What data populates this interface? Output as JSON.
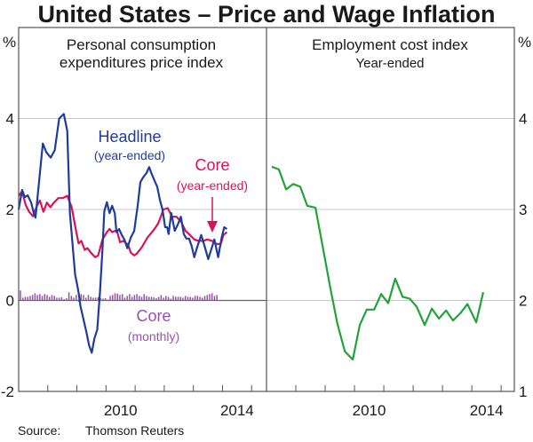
{
  "chart_data": {
    "type": "line",
    "title": "United States – Price and Wage Inflation",
    "source_label": "Source:",
    "source_text": "Thomson Reuters",
    "panels": [
      {
        "id": "left",
        "title_line1": "Personal consumption",
        "title_line2": "expenditures price index",
        "ylabel": "%",
        "ylim": [
          -2,
          6
        ],
        "yticks": [
          -2,
          0,
          2,
          4
        ],
        "ytick_labels": [
          "-2",
          "0",
          "2",
          "4"
        ],
        "xlim": [
          2007.0,
          2015.45
        ],
        "xtick_years": [
          2008,
          2009,
          2010,
          2011,
          2012,
          2013,
          2014,
          2015
        ],
        "xlabels": [
          {
            "year": 2010,
            "label": "2010"
          },
          {
            "year": 2014,
            "label": "2014"
          }
        ],
        "grid": true,
        "series": [
          {
            "name": "Headline (year-ended)",
            "type": "line",
            "color": "#1f3c9c",
            "x": [
              2007.0,
              2007.12,
              2007.21,
              2007.31,
              2007.43,
              2007.52,
              2007.58,
              2007.83,
              2007.95,
              2008.1,
              2008.24,
              2008.39,
              2008.55,
              2008.67,
              2008.76,
              2008.94,
              2009.0,
              2009.06,
              2009.12,
              2009.24,
              2009.33,
              2009.42,
              2009.51,
              2009.6,
              2009.7,
              2009.79,
              2009.88,
              2009.94,
              2010.03,
              2010.12,
              2010.21,
              2010.3,
              2010.36,
              2010.45,
              2010.54,
              2010.63,
              2010.73,
              2010.85,
              2010.97,
              2011.09,
              2011.18,
              2011.27,
              2011.39,
              2011.48,
              2011.57,
              2011.69,
              2011.76,
              2011.85,
              2011.94,
              2012.03,
              2012.1,
              2012.15,
              2012.24,
              2012.36,
              2012.48,
              2012.57,
              2012.67,
              2012.76,
              2012.85,
              2012.94,
              2013.03,
              2013.12,
              2013.27,
              2013.39,
              2013.51,
              2013.63,
              2013.72,
              2013.85,
              2013.97,
              2014.06,
              2014.15
            ],
            "values": [
              2.0,
              2.43,
              2.27,
              2.31,
              2.15,
              1.92,
              1.82,
              3.45,
              3.26,
              3.14,
              3.3,
              4.0,
              4.1,
              3.73,
              1.92,
              0.56,
              0.37,
              0.17,
              -0.12,
              -0.45,
              -0.71,
              -0.99,
              -1.15,
              -0.84,
              -0.64,
              0.17,
              1.14,
              1.96,
              2.16,
              1.92,
              2.08,
              1.92,
              1.5,
              1.57,
              1.44,
              1.34,
              1.15,
              1.38,
              1.53,
              2.1,
              2.6,
              2.7,
              2.8,
              2.93,
              2.78,
              2.6,
              2.5,
              2.21,
              2.0,
              1.61,
              1.61,
              1.46,
              1.92,
              1.53,
              1.69,
              1.84,
              1.46,
              1.36,
              1.36,
              1.2,
              0.95,
              1.15,
              1.44,
              1.18,
              0.91,
              1.15,
              1.34,
              0.95,
              1.38,
              1.61,
              1.57
            ]
          },
          {
            "name": "Core (year-ended)",
            "type": "line",
            "color": "#d4145a",
            "x": [
              2007.0,
              2007.12,
              2007.24,
              2007.36,
              2007.49,
              2007.61,
              2007.73,
              2007.85,
              2007.97,
              2008.09,
              2008.21,
              2008.36,
              2008.52,
              2008.67,
              2008.82,
              2008.97,
              2009.06,
              2009.15,
              2009.27,
              2009.36,
              2009.48,
              2009.63,
              2009.73,
              2009.88,
              2010.03,
              2010.12,
              2010.21,
              2010.3,
              2010.39,
              2010.48,
              2010.6,
              2010.76,
              2010.85,
              2010.97,
              2011.06,
              2011.24,
              2011.42,
              2011.64,
              2011.79,
              2011.88,
              2011.97,
              2012.12,
              2012.27,
              2012.42,
              2012.58,
              2012.73,
              2012.88,
              2013.03,
              2013.18,
              2013.33,
              2013.48,
              2013.64,
              2013.79,
              2013.94,
              2014.03,
              2014.15
            ],
            "values": [
              2.3,
              2.4,
              2.1,
              1.95,
              1.85,
              2.05,
              2.2,
              1.95,
              2.15,
              2.05,
              2.15,
              2.25,
              2.25,
              2.3,
              2.05,
              1.53,
              1.25,
              1.31,
              1.11,
              1.15,
              1.05,
              0.95,
              0.99,
              1.34,
              1.5,
              1.57,
              1.5,
              1.53,
              1.5,
              1.28,
              1.31,
              1.22,
              1.05,
              0.99,
              1.03,
              1.18,
              1.38,
              1.55,
              1.69,
              1.84,
              2.0,
              2.03,
              1.84,
              1.84,
              1.73,
              1.53,
              1.44,
              1.34,
              1.31,
              1.31,
              1.34,
              1.31,
              1.24,
              1.24,
              1.44,
              1.5
            ]
          },
          {
            "name": "Core (monthly)",
            "type": "bar",
            "color": "#9b4fb0",
            "start": 2007.0,
            "step": 0.0833,
            "values": [
              0.22,
              0.06,
              0.08,
              0.08,
              0.1,
              0.12,
              0.16,
              0.12,
              0.14,
              0.1,
              0.14,
              0.12,
              0.08,
              0.12,
              0.1,
              0.06,
              0.06,
              0.07,
              0.03,
              0.05,
              0.18,
              0.1,
              0.06,
              0.12,
              -0.03,
              0.14,
              0.12,
              0.06,
              0.12,
              0.08,
              0.06,
              0.06,
              0.07,
              0.05,
              0.04,
              0.05,
              0.02,
              0.1,
              0.12,
              0.16,
              0.15,
              0.12,
              0.14,
              0.06,
              0.1,
              0.14,
              0.08,
              0.12,
              0.14,
              0.1,
              0.08,
              0.14,
              0.1,
              0.08,
              0.08,
              0.07,
              0.05,
              0.08,
              0.12,
              0.06,
              0.1,
              0.08,
              0.04,
              0.1,
              0.08,
              0.08,
              0.08,
              0.06,
              0.1,
              0.08,
              0.08,
              0.06,
              0.1,
              0.1,
              0.08,
              0.06,
              0.1,
              0.12,
              0.14,
              0.16,
              0.1,
              0.12
            ]
          }
        ],
        "annotations": [
          {
            "text": "Headline",
            "color": "#1f3c9c",
            "size": "big"
          },
          {
            "text": "(year-ended)",
            "color": "#1f3c9c",
            "size": "small"
          },
          {
            "text": "Core",
            "color": "#d4145a",
            "size": "big"
          },
          {
            "text": "(year-ended)",
            "color": "#d4145a",
            "size": "small"
          },
          {
            "text": "Core",
            "color": "#9b4fb0",
            "size": "big"
          },
          {
            "text": "(monthly)",
            "color": "#9b4fb0",
            "size": "small"
          }
        ]
      },
      {
        "id": "right",
        "title_line1": "Employment cost index",
        "title_line2": "Year-ended",
        "ylabel": "%",
        "ylim": [
          1,
          5
        ],
        "yticks": [
          1,
          2,
          3,
          4
        ],
        "ytick_labels": [
          "1",
          "2",
          "3",
          "4"
        ],
        "xlim": [
          2007.0,
          2015.45
        ],
        "xtick_years": [
          2008,
          2009,
          2010,
          2011,
          2012,
          2013,
          2014,
          2015
        ],
        "xlabels": [
          {
            "year": 2010,
            "label": "2010"
          },
          {
            "year": 2014,
            "label": "2014"
          }
        ],
        "grid": true,
        "series": [
          {
            "name": "Employment cost index (year-ended)",
            "type": "line",
            "color": "#22a33a",
            "x": [
              2007.18,
              2007.42,
              2007.67,
              2007.91,
              2008.15,
              2008.39,
              2008.67,
              2008.91,
              2009.18,
              2009.42,
              2009.67,
              2009.94,
              2010.18,
              2010.42,
              2010.67,
              2010.91,
              2011.15,
              2011.39,
              2011.64,
              2011.88,
              2012.12,
              2012.39,
              2012.64,
              2012.88,
              2013.12,
              2013.36,
              2013.61,
              2013.85,
              2014.15,
              2014.39
            ],
            "values": [
              3.47,
              3.44,
              3.22,
              3.28,
              3.25,
              3.04,
              3.02,
              2.6,
              2.13,
              1.74,
              1.44,
              1.35,
              1.73,
              1.9,
              1.9,
              2.07,
              1.97,
              2.24,
              2.04,
              2.02,
              1.93,
              1.73,
              1.91,
              1.8,
              1.89,
              1.78,
              1.86,
              1.96,
              1.76,
              2.09
            ]
          }
        ]
      }
    ]
  }
}
